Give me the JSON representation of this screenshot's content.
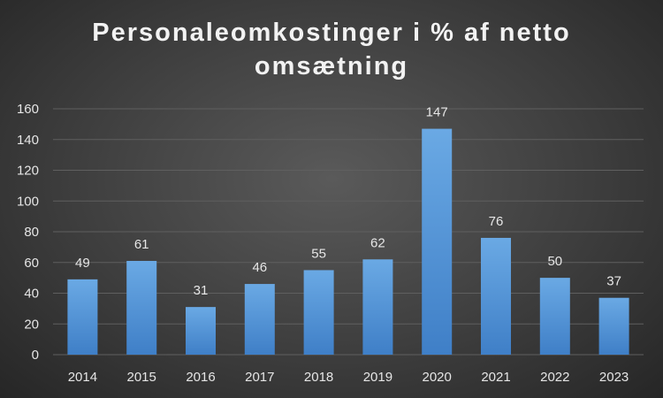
{
  "chart_data": {
    "type": "bar",
    "title": "Personaleomkostinger i % af netto omsætning",
    "xlabel": "",
    "ylabel": "",
    "categories": [
      "2014",
      "2015",
      "2016",
      "2017",
      "2018",
      "2019",
      "2020",
      "2021",
      "2022",
      "2023"
    ],
    "values": [
      49,
      61,
      31,
      46,
      55,
      62,
      147,
      76,
      50,
      37
    ],
    "ylim": [
      0,
      160
    ],
    "yticks": [
      0,
      20,
      40,
      60,
      80,
      100,
      120,
      140,
      160
    ],
    "grid": true,
    "legend": "none",
    "data_labels": true,
    "colors": {
      "bar_top": "#6aa9e4",
      "bar_bottom": "#3f7fc7",
      "background": "#3e3e3e",
      "grid": "#5f5f5f",
      "text": "#e6e6e6"
    }
  }
}
